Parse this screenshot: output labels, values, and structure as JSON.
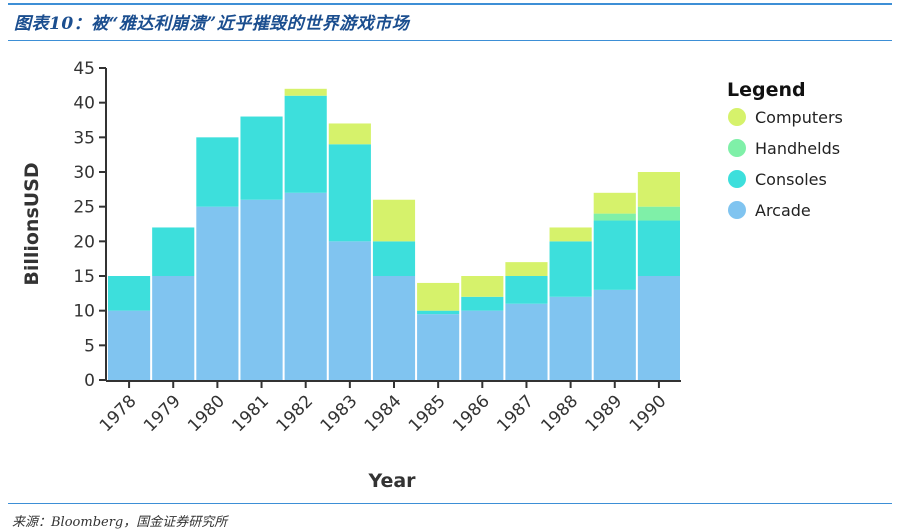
{
  "figure": {
    "title": "图表10：被“雅达利崩溃”近乎摧毁的世界游戏市场",
    "source": "来源：Bloomberg，国金证券研究所"
  },
  "chart_data": {
    "type": "bar",
    "stacked": true,
    "title": "",
    "xlabel": "Year",
    "ylabel": "BillionsUSD",
    "ylim": [
      0,
      45
    ],
    "yticks": [
      0,
      5,
      10,
      15,
      20,
      25,
      30,
      35,
      40,
      45
    ],
    "grid": false,
    "legend": {
      "title": "Legend",
      "placement": "right"
    },
    "categories": [
      "1978",
      "1979",
      "1980",
      "1981",
      "1982",
      "1983",
      "1984",
      "1985",
      "1986",
      "1987",
      "1988",
      "1989",
      "1990"
    ],
    "series": [
      {
        "name": "Arcade",
        "color": "#80c4f0",
        "values": [
          10,
          15,
          25,
          26,
          27,
          20,
          15,
          9.5,
          10,
          11,
          12,
          13,
          15
        ]
      },
      {
        "name": "Consoles",
        "color": "#3ddfdc",
        "values": [
          5,
          7,
          10,
          12,
          14,
          14,
          5,
          0.5,
          2,
          4,
          8,
          10,
          8
        ]
      },
      {
        "name": "Handhelds",
        "color": "#7ff0a8",
        "values": [
          0,
          0,
          0,
          0,
          0,
          0,
          0,
          0,
          0,
          0,
          0,
          1,
          2
        ]
      },
      {
        "name": "Computers",
        "color": "#d6f26b",
        "values": [
          0,
          0,
          0,
          0,
          1,
          3,
          6,
          4,
          3,
          2,
          2,
          3,
          5
        ]
      }
    ],
    "legend_order": [
      "Computers",
      "Handhelds",
      "Consoles",
      "Arcade"
    ]
  }
}
